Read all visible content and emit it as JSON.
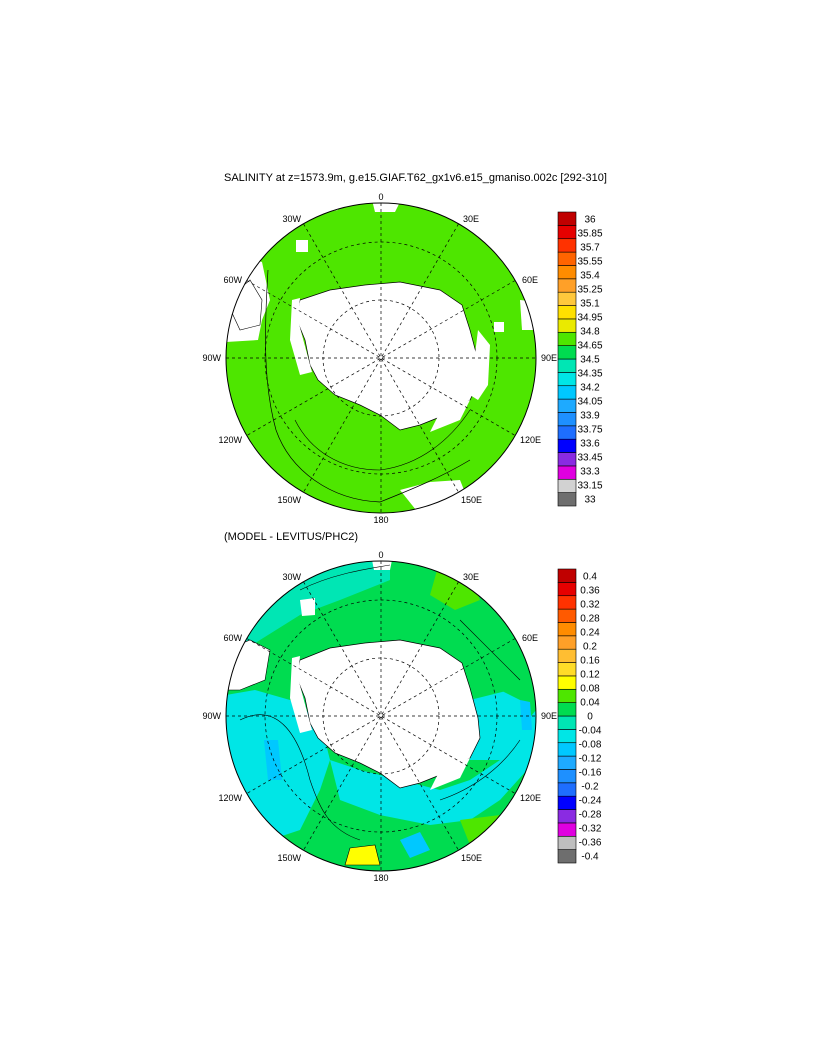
{
  "panels": [
    {
      "title": "SALINITY at z=1573.9m, g.e15.GIAF.T62_gx1v6.e15_gmaniso.002c [292-310]",
      "lon_labels": {
        "0": "0",
        "30E": "30E",
        "60E": "60E",
        "90E": "90E",
        "120E": "120E",
        "150E": "150E",
        "180": "180",
        "150W": "150W",
        "120W": "120W",
        "90W": "90W",
        "60W": "60W",
        "30W": "30W"
      },
      "colorbar": {
        "colors": [
          "#6e6e6e",
          "#d2d2d2",
          "#e000e0",
          "#8a2be2",
          "#0000ff",
          "#1e6eff",
          "#1e90ff",
          "#1eaaff",
          "#00c8ff",
          "#00e6e6",
          "#00e6b4",
          "#00dc50",
          "#4ee600",
          "#eaea00",
          "#ffe000",
          "#ffc83c",
          "#ffa028",
          "#ff8c00",
          "#ff6400",
          "#ff3200",
          "#e60000",
          "#c00000"
        ],
        "labels": [
          "33",
          "33.15",
          "33.3",
          "33.45",
          "33.6",
          "33.75",
          "33.9",
          "34.05",
          "34.2",
          "34.35",
          "34.5",
          "34.65",
          "34.8",
          "34.95",
          "35.1",
          "35.25",
          "35.4",
          "35.55",
          "35.7",
          "35.85",
          "36"
        ]
      }
    },
    {
      "title": "(MODEL - LEVITUS/PHC2)",
      "lon_labels": {
        "0": "0",
        "30E": "30E",
        "60E": "60E",
        "90E": "90E",
        "120E": "120E",
        "150E": "150E",
        "180": "180",
        "150W": "150W",
        "120W": "120W",
        "90W": "90W",
        "60W": "60W",
        "30W": "30W"
      },
      "colorbar": {
        "colors": [
          "#6e6e6e",
          "#bebebe",
          "#e000e0",
          "#8a2be2",
          "#0000ff",
          "#1e6eff",
          "#1e90ff",
          "#1eaaff",
          "#00c8ff",
          "#00e6e6",
          "#00e6b4",
          "#00dc50",
          "#4ee600",
          "#ffff00",
          "#ffdc28",
          "#ffbe32",
          "#ffa028",
          "#ff8c00",
          "#ff5a00",
          "#ff3200",
          "#e60000",
          "#c00000"
        ],
        "labels": [
          "-0.4",
          "-0.36",
          "-0.32",
          "-0.28",
          "-0.24",
          "-0.2",
          "-0.16",
          "-0.12",
          "-0.08",
          "-0.04",
          "0",
          "0.04",
          "0.08",
          "0.12",
          "0.16",
          "0.2",
          "0.24",
          "0.28",
          "0.32",
          "0.36",
          "0.4"
        ]
      }
    }
  ]
}
